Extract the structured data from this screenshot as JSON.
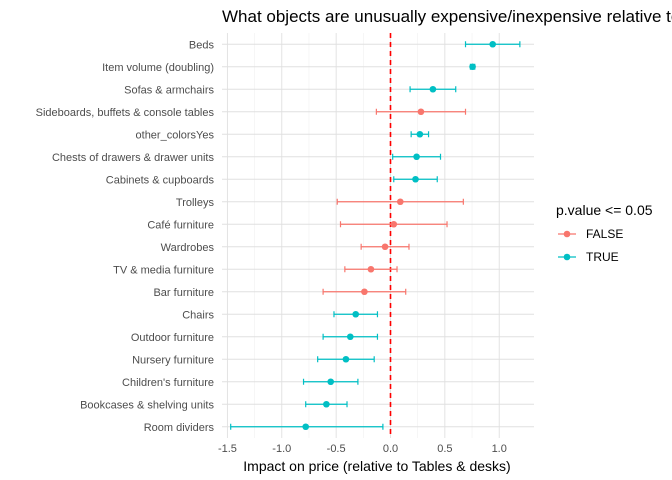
{
  "chart_data": {
    "type": "scatter",
    "subtype": "dot-with-error-bars",
    "title": "What objects are unusually expensive/inexpensive relative to their size?",
    "xlabel": "Impact on price (relative to Tables & desks)",
    "ylabel": "",
    "xlim": [
      -1.55,
      1.32
    ],
    "xticks": [
      -1.5,
      -1.0,
      -0.5,
      0.0,
      0.5,
      1.0
    ],
    "xtick_labels": [
      "-1.5",
      "-1.0",
      "-0.5",
      "0.0",
      "0.5",
      "1.0"
    ],
    "reference_line": {
      "x": 0,
      "style": "dashed",
      "color": "#ff0000"
    },
    "grid": true,
    "legend": {
      "title": "p.value <= 0.05",
      "placement": "right",
      "entries": [
        {
          "label": "FALSE",
          "color": "#F8766D"
        },
        {
          "label": "TRUE",
          "color": "#00BFC4"
        }
      ]
    },
    "points": [
      {
        "label": "Beds",
        "estimate": 0.94,
        "low": 0.69,
        "high": 1.19,
        "significant": "TRUE"
      },
      {
        "label": "Item volume (doubling)",
        "estimate": 0.755,
        "low": 0.735,
        "high": 0.775,
        "significant": "TRUE"
      },
      {
        "label": "Sofas & armchairs",
        "estimate": 0.39,
        "low": 0.18,
        "high": 0.6,
        "significant": "TRUE"
      },
      {
        "label": "Sideboards, buffets & console tables",
        "estimate": 0.28,
        "low": -0.13,
        "high": 0.69,
        "significant": "FALSE"
      },
      {
        "label": "other_colorsYes",
        "estimate": 0.27,
        "low": 0.19,
        "high": 0.35,
        "significant": "TRUE"
      },
      {
        "label": "Chests of drawers & drawer units",
        "estimate": 0.24,
        "low": 0.02,
        "high": 0.46,
        "significant": "TRUE"
      },
      {
        "label": "Cabinets & cupboards",
        "estimate": 0.23,
        "low": 0.03,
        "high": 0.43,
        "significant": "TRUE"
      },
      {
        "label": "Trolleys",
        "estimate": 0.09,
        "low": -0.49,
        "high": 0.67,
        "significant": "FALSE"
      },
      {
        "label": "Café furniture",
        "estimate": 0.03,
        "low": -0.46,
        "high": 0.52,
        "significant": "FALSE"
      },
      {
        "label": "Wardrobes",
        "estimate": -0.05,
        "low": -0.27,
        "high": 0.17,
        "significant": "FALSE"
      },
      {
        "label": "TV & media furniture",
        "estimate": -0.18,
        "low": -0.42,
        "high": 0.06,
        "significant": "FALSE"
      },
      {
        "label": "Bar furniture",
        "estimate": -0.24,
        "low": -0.62,
        "high": 0.14,
        "significant": "FALSE"
      },
      {
        "label": "Chairs",
        "estimate": -0.32,
        "low": -0.52,
        "high": -0.12,
        "significant": "TRUE"
      },
      {
        "label": "Outdoor furniture",
        "estimate": -0.37,
        "low": -0.62,
        "high": -0.12,
        "significant": "TRUE"
      },
      {
        "label": "Nursery furniture",
        "estimate": -0.41,
        "low": -0.67,
        "high": -0.15,
        "significant": "TRUE"
      },
      {
        "label": "Children's furniture",
        "estimate": -0.55,
        "low": -0.8,
        "high": -0.3,
        "significant": "TRUE"
      },
      {
        "label": "Bookcases & shelving units",
        "estimate": -0.59,
        "low": -0.78,
        "high": -0.4,
        "significant": "TRUE"
      },
      {
        "label": "Room dividers",
        "estimate": -0.78,
        "low": -1.47,
        "high": -0.07,
        "significant": "TRUE"
      }
    ]
  }
}
